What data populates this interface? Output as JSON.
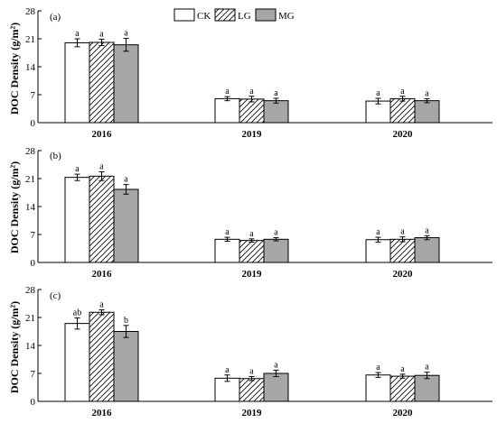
{
  "legend": [
    {
      "key": "CK",
      "label": "CK",
      "fill": "#ffffff",
      "pattern": "none"
    },
    {
      "key": "LG",
      "label": "LG",
      "fill": "#ffffff",
      "pattern": "hatch"
    },
    {
      "key": "MG",
      "label": "MG",
      "fill": "#a6a6a6",
      "pattern": "none"
    }
  ],
  "colors": {
    "axis": "#000000",
    "ck": "#ffffff",
    "lg_hatch": "#000000",
    "mg": "#a6a6a6"
  },
  "chart_data": [
    {
      "type": "bar",
      "panel_label": "(a)",
      "ylabel": "DOC Density (g/m²)",
      "ylim": [
        0,
        28
      ],
      "yticks": [
        0,
        7,
        14,
        21,
        28
      ],
      "categories": [
        "2016",
        "2019",
        "2020"
      ],
      "series": [
        {
          "name": "CK",
          "values": [
            20.0,
            6.0,
            5.4
          ],
          "errors": [
            1.0,
            0.5,
            0.7
          ],
          "labels": [
            "a",
            "a",
            "a"
          ]
        },
        {
          "name": "LG",
          "values": [
            20.1,
            5.9,
            6.0
          ],
          "errors": [
            0.8,
            0.7,
            0.6
          ],
          "labels": [
            "a",
            "a",
            "a"
          ]
        },
        {
          "name": "MG",
          "values": [
            19.5,
            5.5,
            5.5
          ],
          "errors": [
            1.6,
            0.6,
            0.5
          ],
          "labels": [
            "a",
            "a",
            "a"
          ]
        }
      ]
    },
    {
      "type": "bar",
      "panel_label": "(b)",
      "ylabel": "DOC Density (g/m²)",
      "ylim": [
        0,
        28
      ],
      "yticks": [
        0,
        7,
        14,
        21,
        28
      ],
      "categories": [
        "2016",
        "2019",
        "2020"
      ],
      "series": [
        {
          "name": "CK",
          "values": [
            21.3,
            5.8,
            5.7
          ],
          "errors": [
            0.8,
            0.5,
            0.6
          ],
          "labels": [
            "a",
            "a",
            "a"
          ]
        },
        {
          "name": "LG",
          "values": [
            21.6,
            5.5,
            5.8
          ],
          "errors": [
            1.1,
            0.4,
            0.6
          ],
          "labels": [
            "a",
            "a",
            "a"
          ]
        },
        {
          "name": "MG",
          "values": [
            18.3,
            5.8,
            6.2
          ],
          "errors": [
            1.2,
            0.4,
            0.5
          ],
          "labels": [
            "a",
            "a",
            "a"
          ]
        }
      ]
    },
    {
      "type": "bar",
      "panel_label": "(c)",
      "ylabel": "DOC Density (g/m²)",
      "ylim": [
        0,
        28
      ],
      "yticks": [
        0,
        7,
        14,
        21,
        28
      ],
      "categories": [
        "2016",
        "2019",
        "2020"
      ],
      "series": [
        {
          "name": "CK",
          "values": [
            19.5,
            5.8,
            6.6
          ],
          "errors": [
            1.4,
            0.8,
            0.6
          ],
          "labels": [
            "ab",
            "a",
            "a"
          ]
        },
        {
          "name": "LG",
          "values": [
            22.3,
            5.7,
            6.3
          ],
          "errors": [
            0.6,
            0.5,
            0.5
          ],
          "labels": [
            "a",
            "a",
            "a"
          ]
        },
        {
          "name": "MG",
          "values": [
            17.5,
            7.0,
            6.5
          ],
          "errors": [
            1.5,
            0.8,
            0.8
          ],
          "labels": [
            "b",
            "a",
            "a"
          ]
        }
      ]
    }
  ]
}
